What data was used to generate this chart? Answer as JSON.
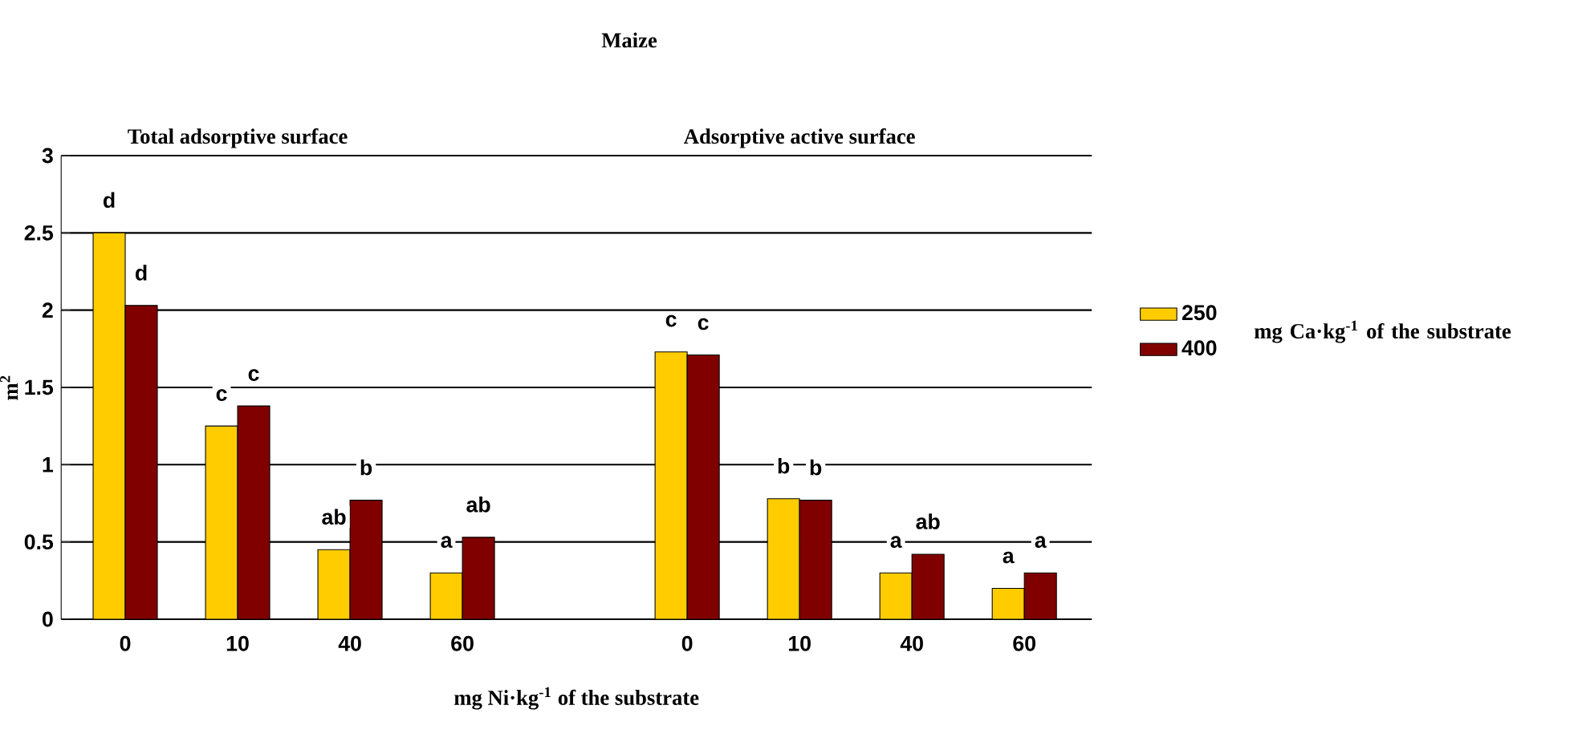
{
  "chart_data": {
    "type": "bar",
    "title": "Maize",
    "xlabel": "mg Ni·kg$^{-1}$ of the substrate",
    "ylabel": "m$^{2}$",
    "legend_title": "mg Ca·kg$^{-1}$ of the substrate",
    "annotations": [
      "Total adsorptive surface",
      "Adsorptive active surface"
    ],
    "categories": [
      "0",
      "10",
      "40",
      "60",
      null,
      "0",
      "10",
      "40",
      "60"
    ],
    "series": [
      {
        "name": "250",
        "color": "#ffcc00",
        "values": [
          2.5,
          1.25,
          0.45,
          0.3,
          null,
          1.73,
          0.78,
          0.3,
          0.2
        ],
        "value_labels": [
          "d",
          "c",
          "ab",
          "a",
          null,
          "c",
          "b",
          "a",
          "a"
        ]
      },
      {
        "name": "400",
        "color": "#800000",
        "values": [
          2.03,
          1.38,
          0.77,
          0.53,
          null,
          1.71,
          0.77,
          0.42,
          0.3
        ],
        "value_labels": [
          "d",
          "c",
          "b",
          "ab",
          null,
          "c",
          "b",
          "ab",
          "a"
        ]
      }
    ],
    "ylim": [
      0,
      3
    ],
    "yticks": [
      0,
      0.5,
      1,
      1.5,
      2,
      2.5,
      3
    ],
    "grid": "y",
    "legend": "right"
  }
}
